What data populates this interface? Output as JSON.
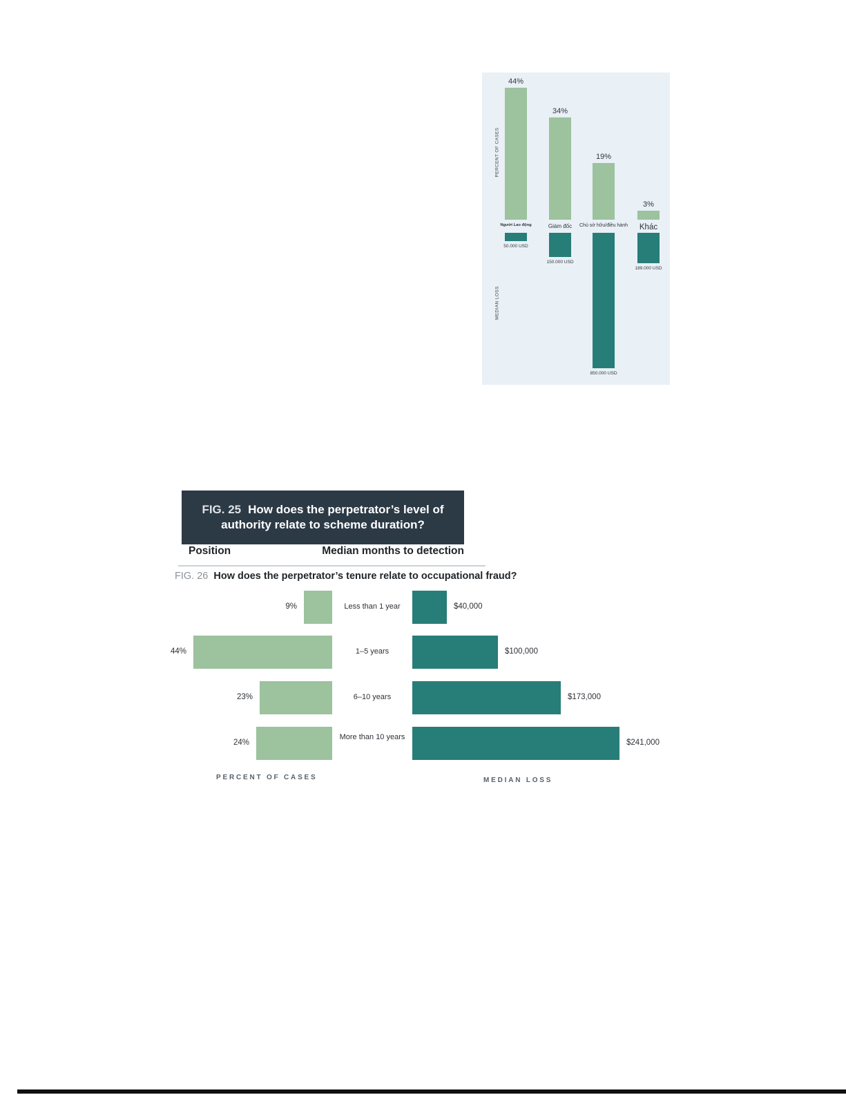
{
  "colors": {
    "percent_bar": "#9cc29e",
    "loss_bar": "#277d78",
    "chart_background": "#e9f0f6",
    "fig_header_background": "#2c3a46"
  },
  "fig25": {
    "fig_label": "FIG. 25",
    "title_line1": "How does the perpetrator’s level of",
    "title_line2": "authority relate to scheme duration?",
    "col_left": "Position",
    "col_right": "Median months to detection"
  },
  "chart_data": [
    {
      "type": "bar",
      "name": "authority-position-chart",
      "layout": "mirrored-vertical; percent bars grow up from shared baseline, loss bars grow down",
      "categories": [
        "Người Lao động",
        "Giám đốc",
        "Chủ sở hữu/điều hành",
        "Khác"
      ],
      "series": [
        {
          "name": "PERCENT OF CASES",
          "values": [
            44,
            34,
            19,
            3
          ],
          "labels": [
            "44%",
            "34%",
            "19%",
            "3%"
          ]
        },
        {
          "name": "MEDIAN LOSS",
          "values": [
            50000,
            150000,
            850000,
            189000
          ],
          "labels": [
            "50.000 USD",
            "150.000 USD",
            "850.000 USD",
            "189.000 USD"
          ]
        }
      ],
      "legend_position": "rotated axis captions at left",
      "grid": false
    },
    {
      "type": "bar",
      "name": "tenure-chart",
      "fig_label": "FIG. 26",
      "title": "How does the perpetrator’s tenure relate to occupational fraud?",
      "layout": "paired horizontal bars; percent bars grow left, loss bars grow right",
      "categories": [
        "Less than 1 year",
        "1–5 years",
        "6–10 years",
        "More than 10 years"
      ],
      "series": [
        {
          "name": "PERCENT OF CASES",
          "values": [
            9,
            44,
            23,
            24
          ],
          "labels": [
            "9%",
            "44%",
            "23%",
            "24%"
          ]
        },
        {
          "name": "MEDIAN LOSS",
          "values": [
            40000,
            100000,
            173000,
            241000
          ],
          "labels": [
            "$40,000",
            "$100,000",
            "$173,000",
            "$241,000"
          ]
        }
      ],
      "legend_position": "captions below chart",
      "grid": false
    }
  ]
}
